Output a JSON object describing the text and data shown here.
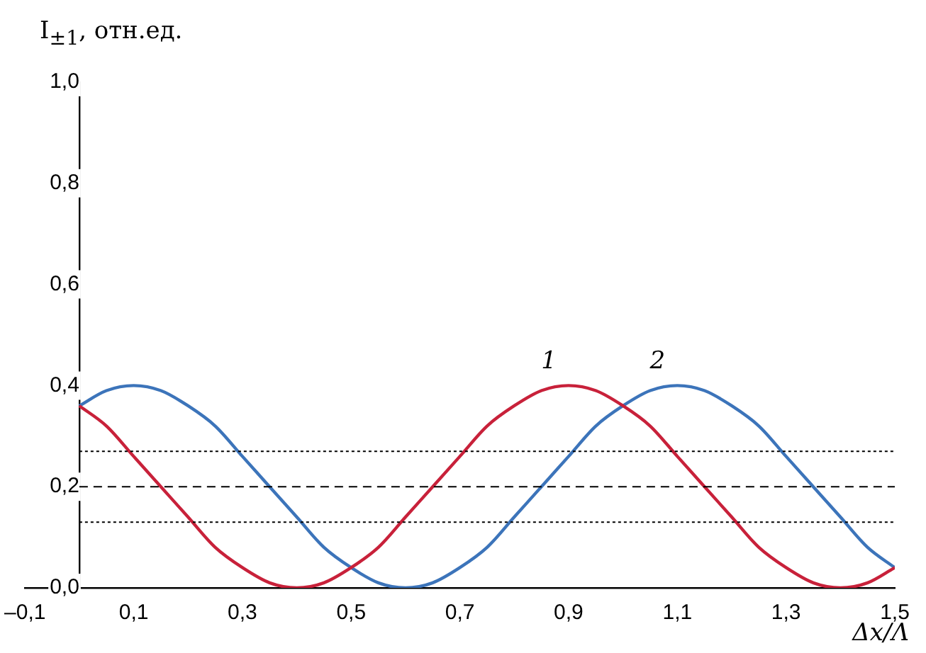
{
  "chart_data": {
    "type": "line",
    "xlabel": "Δx/Λ",
    "ylabel": "I$_{±1}$, отн.ед.",
    "x": [
      0,
      0.05,
      0.1,
      0.15,
      0.2,
      0.25,
      0.3,
      0.35,
      0.4,
      0.45,
      0.5,
      0.55,
      0.6,
      0.65,
      0.7,
      0.75,
      0.8,
      0.85,
      0.9,
      0.95,
      1.0,
      1.05,
      1.1,
      1.15,
      1.2,
      1.25,
      1.3,
      1.35,
      1.4,
      1.45,
      1.5
    ],
    "series": [
      {
        "name": "1",
        "color": "#c8213a",
        "values": [
          0.36,
          0.32,
          0.26,
          0.2,
          0.14,
          0.08,
          0.04,
          0.01,
          0,
          0.01,
          0.04,
          0.08,
          0.14,
          0.2,
          0.26,
          0.32,
          0.36,
          0.39,
          0.4,
          0.39,
          0.36,
          0.32,
          0.26,
          0.2,
          0.14,
          0.08,
          0.04,
          0.01,
          0,
          0.01,
          0.04
        ]
      },
      {
        "name": "2",
        "color": "#3c74ba",
        "values": [
          0.36,
          0.39,
          0.4,
          0.39,
          0.36,
          0.32,
          0.26,
          0.2,
          0.14,
          0.08,
          0.04,
          0.01,
          0,
          0.01,
          0.04,
          0.08,
          0.14,
          0.2,
          0.26,
          0.32,
          0.36,
          0.39,
          0.4,
          0.39,
          0.36,
          0.32,
          0.26,
          0.2,
          0.14,
          0.08,
          0.04
        ]
      }
    ],
    "xlim": [
      -0.1,
      1.5
    ],
    "xticks": [
      {
        "value": -0.1,
        "label": "–0,1"
      },
      {
        "value": 0.1,
        "label": "0,1"
      },
      {
        "value": 0.3,
        "label": "0,3"
      },
      {
        "value": 0.5,
        "label": "0,5"
      },
      {
        "value": 0.7,
        "label": "0,7"
      },
      {
        "value": 0.9,
        "label": "0,9"
      },
      {
        "value": 1.1,
        "label": "1,1"
      },
      {
        "value": 1.3,
        "label": "1,3"
      },
      {
        "value": 1.5,
        "label": "1,5"
      }
    ],
    "ylim": [
      0,
      1
    ],
    "yticks": [
      {
        "value": 0,
        "label": "0,0"
      },
      {
        "value": 0.2,
        "label": "0,2"
      },
      {
        "value": 0.4,
        "label": "0,4"
      },
      {
        "value": 0.6,
        "label": "0,6"
      },
      {
        "value": 0.8,
        "label": "0,8"
      },
      {
        "value": 1,
        "label": "1,0"
      }
    ],
    "ref_lines": [
      {
        "axis": "y",
        "value": 0.27,
        "line_style": "dotted",
        "color": "#000000"
      },
      {
        "axis": "y",
        "value": 0.2,
        "line_style": "dashed",
        "color": "#000000"
      },
      {
        "axis": "y",
        "value": 0.13,
        "line_style": "dotted",
        "color": "#000000"
      }
    ],
    "grid": false,
    "legend": false,
    "marker": "none",
    "line_style": "solid"
  }
}
